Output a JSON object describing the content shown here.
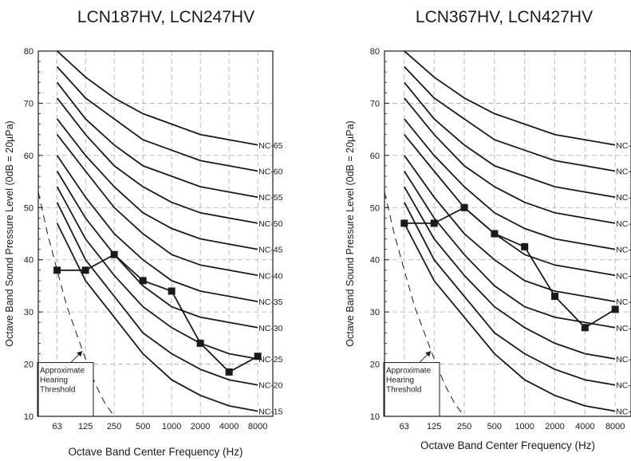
{
  "nc_curves": {
    "x": [
      "63",
      "125",
      "250",
      "500",
      "1000",
      "2000",
      "4000",
      "8000"
    ],
    "series": [
      {
        "name": "NC-65",
        "values": [
          80,
          75,
          71,
          68,
          66,
          64,
          63,
          62
        ]
      },
      {
        "name": "NC-60",
        "values": [
          77,
          71,
          67,
          63,
          61,
          59,
          58,
          57
        ]
      },
      {
        "name": "NC-55",
        "values": [
          74,
          67,
          62,
          58,
          56,
          54,
          53,
          52
        ]
      },
      {
        "name": "NC-50",
        "values": [
          71,
          64,
          58,
          54,
          51,
          49,
          48,
          47
        ]
      },
      {
        "name": "NC-45",
        "values": [
          67,
          60,
          54,
          49,
          46,
          44,
          43,
          42
        ]
      },
      {
        "name": "NC-40",
        "values": [
          64,
          57,
          50,
          45,
          41,
          39,
          38,
          37
        ]
      },
      {
        "name": "NC-35",
        "values": [
          60,
          52,
          45,
          40,
          36,
          34,
          33,
          32
        ]
      },
      {
        "name": "NC-30",
        "values": [
          57,
          48,
          41,
          35,
          31,
          29,
          28,
          27
        ]
      },
      {
        "name": "NC-25",
        "values": [
          54,
          44,
          37,
          31,
          27,
          24,
          22,
          21
        ]
      },
      {
        "name": "NC-20",
        "values": [
          51,
          40,
          33,
          26,
          22,
          19,
          17,
          16
        ]
      },
      {
        "name": "NC-15",
        "values": [
          47,
          36,
          29,
          22,
          17,
          14,
          12,
          11
        ]
      }
    ]
  },
  "hearing_threshold": {
    "points": [
      [
        40,
        53
      ],
      [
        50,
        45
      ],
      [
        63,
        38
      ],
      [
        80,
        31
      ],
      [
        100,
        26
      ],
      [
        125,
        21
      ],
      [
        160,
        16
      ],
      [
        200,
        12.5
      ],
      [
        250,
        10
      ]
    ],
    "label_lines": [
      "Approximate",
      "Hearing",
      "Threshold"
    ]
  },
  "chart_data": [
    {
      "type": "line",
      "title": "LCN187HV, LCN247HV",
      "xlabel": "Octave Band Center Frequency (Hz)",
      "ylabel": "Octave Band Sound Pressure Level (0dB = 20µPa)",
      "x": [
        "63",
        "125",
        "250",
        "500",
        "1000",
        "2000",
        "4000",
        "8000"
      ],
      "x_scale": "log",
      "ylim": [
        10,
        80
      ],
      "yticks": [
        10,
        20,
        30,
        40,
        50,
        60,
        70,
        80
      ],
      "grid": true,
      "series": [
        {
          "values": [
            38,
            38,
            41,
            36,
            34,
            24,
            18.5,
            21.5
          ]
        }
      ]
    },
    {
      "type": "line",
      "title": "LCN367HV, LCN427HV",
      "xlabel": "Octave Band Center Frequency (Hz)",
      "ylabel": "Octave Band Sound Pressure Level (0dB = 20µPa)",
      "x": [
        "63",
        "125",
        "250",
        "500",
        "1000",
        "2000",
        "4000",
        "8000"
      ],
      "x_scale": "log",
      "ylim": [
        10,
        80
      ],
      "yticks": [
        10,
        20,
        30,
        40,
        50,
        60,
        70,
        80
      ],
      "grid": true,
      "series": [
        {
          "values": [
            47,
            47,
            50,
            45,
            42.5,
            33,
            27,
            30.5
          ]
        }
      ]
    }
  ]
}
